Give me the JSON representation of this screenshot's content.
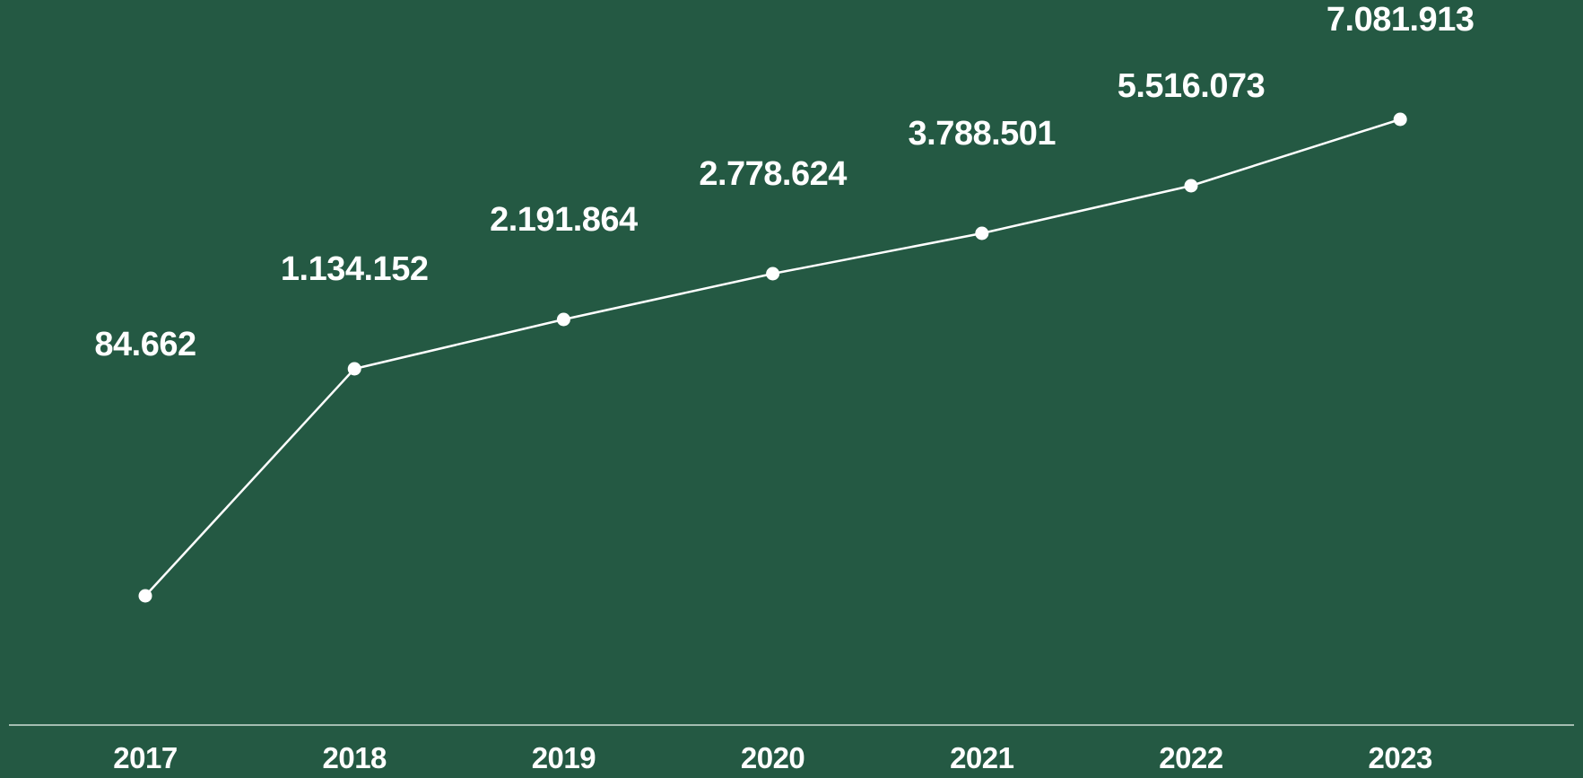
{
  "colors": {
    "background": "#245943",
    "line": "#ffffff",
    "text": "#ffffff",
    "baseline": "#a4bdb1"
  },
  "chart_data": {
    "type": "line",
    "title": "",
    "xlabel": "",
    "ylabel": "",
    "grid": false,
    "legend": "none",
    "categories": [
      "2017",
      "2018",
      "2019",
      "2020",
      "2021",
      "2022",
      "2023"
    ],
    "values": [
      84662,
      1134152,
      2191864,
      2778624,
      3788501,
      5516073,
      7081913
    ],
    "data_labels": [
      "84.662",
      "1.134.152",
      "2.191.864",
      "2.778.624",
      "3.788.501",
      "5.516.073",
      "7.081.913"
    ]
  }
}
